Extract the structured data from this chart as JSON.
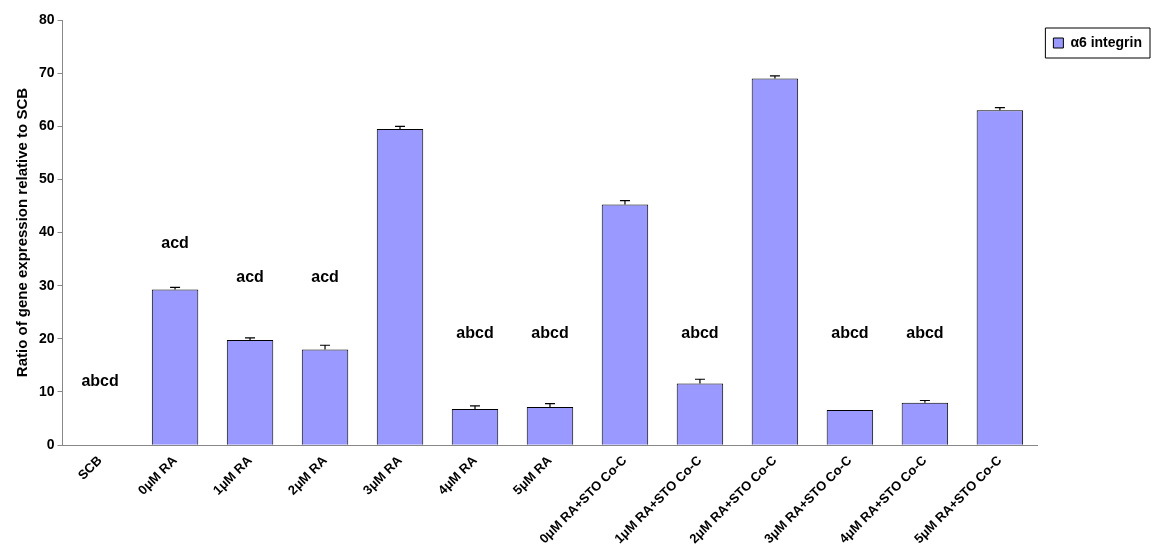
{
  "chart_data": {
    "type": "bar",
    "ylabel": "Ratio of gene expression relative to SCB",
    "categories": [
      "SCB",
      "0μM RA",
      "1μM RA",
      "2μM RA",
      "3μM RA",
      "4μM RA",
      "5μM RA",
      "0μM RA+STO Co-C",
      "1μM RA+STO Co-C",
      "2μM RA+STO Co-C",
      "3μM RA+STO Co-C",
      "4μM RA+STO Co-C",
      "5μM RA+STO Co-C"
    ],
    "series": [
      {
        "name": "α6 integrin",
        "color": "#9999ff",
        "values": [
          0,
          29.3,
          19.8,
          18,
          59.5,
          6.8,
          7.2,
          45.3,
          11.6,
          69,
          6.6,
          8,
          63
        ],
        "errors": [
          null,
          0.4,
          0.4,
          0.8,
          0.5,
          0.6,
          0.6,
          0.7,
          0.8,
          0.5,
          null,
          0.4,
          0.5
        ]
      }
    ],
    "ylim": [
      0,
      80
    ],
    "yticks": [
      0,
      10,
      20,
      30,
      40,
      50,
      60,
      70,
      80
    ],
    "grid": false,
    "legend": "top right",
    "annotations": [
      "abcd",
      "acd",
      "acd",
      "acd",
      "abcd",
      "abcd",
      "abcd",
      "abcd",
      "abcd"
    ]
  }
}
